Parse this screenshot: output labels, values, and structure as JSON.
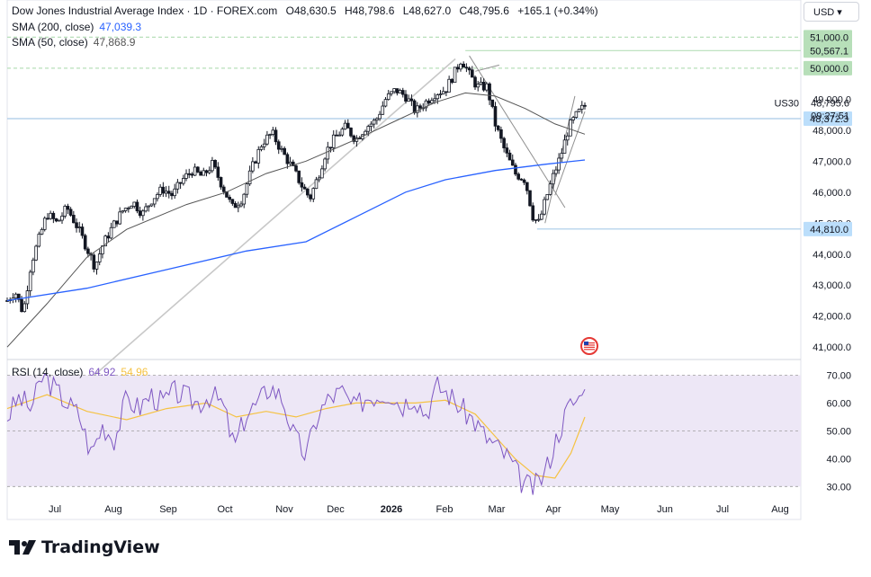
{
  "header": {
    "symbol_line": "Dow Jones Industrial Average Index · 1D · FOREX.com",
    "ohlc": {
      "o_label": "O",
      "o_value": "48,630.5",
      "h_label": "H",
      "h_value": "48,798.6",
      "l_label": "L",
      "l_value": "48,627.0",
      "c_label": "C",
      "c_value": "48,795.6",
      "change": "+165.1 (+0.34%)"
    },
    "sma200_label": "SMA (200, close)",
    "sma200_value": "47,039.3",
    "sma50_label": "SMA (50, close)",
    "sma50_value": "47,868.9",
    "currency": "USD"
  },
  "brand": {
    "name": "TradingView"
  },
  "colors": {
    "up": "#131722",
    "sma200": "#2962ff",
    "sma50": "#555555",
    "trend": "#c8c8c8",
    "green_level": "#b7dfb9",
    "blue_level": "#a9cbe8",
    "rsi": "#7e57c2",
    "rsi_ma": "#f5c242",
    "rsi_band": "#ede7f6"
  },
  "chart_data": [
    {
      "type": "candlestick",
      "symbol": "US30",
      "x_ticks": [
        "Jul",
        "Aug",
        "Sep",
        "Oct",
        "Nov",
        "Dec",
        "2026",
        "Feb",
        "Mar",
        "Apr",
        "May",
        "Jun",
        "Jul",
        "Aug"
      ],
      "y_ticks": [
        "51,000.0",
        "50,000.0",
        "49,000.0",
        "48,000.0",
        "47,000.0",
        "46,000.0",
        "45,000.0",
        "44,000.0",
        "43,000.0",
        "42,000.0",
        "41,000.0"
      ],
      "y_tick_values": [
        51000,
        50000,
        49000,
        48000,
        47000,
        46000,
        45000,
        44000,
        43000,
        42000,
        41000
      ],
      "ylim": [
        40600,
        52200
      ],
      "price_labels": [
        {
          "text": "51,000.0",
          "value": 51000,
          "style": "green"
        },
        {
          "text": "50,567.1",
          "value": 50567.1,
          "style": "green"
        },
        {
          "text": "50,000.0",
          "value": 50000,
          "style": "green"
        },
        {
          "text": "48,372.3",
          "value": 48372.3,
          "style": "blue"
        },
        {
          "text": "44,810.0",
          "value": 44810,
          "style": "blue"
        }
      ],
      "last_price": "48,795.6",
      "countdown": "09:27:51",
      "close_path": [
        [
          0,
          42500
        ],
        [
          4,
          42800
        ],
        [
          8,
          42100
        ],
        [
          12,
          43700
        ],
        [
          16,
          44500
        ],
        [
          20,
          45300
        ],
        [
          25,
          45000
        ],
        [
          30,
          45500
        ],
        [
          35,
          44900
        ],
        [
          40,
          44200
        ],
        [
          44,
          43600
        ],
        [
          48,
          44300
        ],
        [
          53,
          44900
        ],
        [
          58,
          45400
        ],
        [
          63,
          45700
        ],
        [
          68,
          45300
        ],
        [
          73,
          45800
        ],
        [
          78,
          46100
        ],
        [
          83,
          45900
        ],
        [
          88,
          46400
        ],
        [
          93,
          46700
        ],
        [
          98,
          46500
        ],
        [
          103,
          46900
        ],
        [
          108,
          46200
        ],
        [
          113,
          45500
        ],
        [
          118,
          45800
        ],
        [
          123,
          46800
        ],
        [
          128,
          47600
        ],
        [
          133,
          47900
        ],
        [
          138,
          47300
        ],
        [
          143,
          46800
        ],
        [
          148,
          46200
        ],
        [
          152,
          45800
        ],
        [
          156,
          46500
        ],
        [
          160,
          47300
        ],
        [
          165,
          47800
        ],
        [
          170,
          48100
        ],
        [
          175,
          47700
        ],
        [
          180,
          48100
        ],
        [
          185,
          48300
        ],
        [
          190,
          49000
        ],
        [
          195,
          49300
        ],
        [
          200,
          49100
        ],
        [
          205,
          48600
        ],
        [
          210,
          48900
        ],
        [
          215,
          49200
        ],
        [
          220,
          49300
        ],
        [
          225,
          49900
        ],
        [
          228,
          50300
        ],
        [
          232,
          49800
        ],
        [
          236,
          49400
        ],
        [
          241,
          49400
        ],
        [
          245,
          48200
        ],
        [
          250,
          47300
        ],
        [
          255,
          46600
        ],
        [
          260,
          46400
        ],
        [
          264,
          45200
        ],
        [
          267,
          45000
        ],
        [
          270,
          45700
        ],
        [
          274,
          46500
        ],
        [
          278,
          47200
        ],
        [
          282,
          48100
        ],
        [
          286,
          48500
        ],
        [
          290,
          48795.6
        ]
      ],
      "sma200": [
        [
          0,
          42500
        ],
        [
          40,
          42900
        ],
        [
          80,
          43500
        ],
        [
          120,
          44100
        ],
        [
          150,
          44400
        ],
        [
          175,
          45200
        ],
        [
          200,
          46000
        ],
        [
          220,
          46400
        ],
        [
          245,
          46700
        ],
        [
          270,
          46900
        ],
        [
          290,
          47039.3
        ]
      ],
      "sma50": [
        [
          0,
          41000
        ],
        [
          20,
          42400
        ],
        [
          40,
          43900
        ],
        [
          60,
          44800
        ],
        [
          90,
          45600
        ],
        [
          110,
          46000
        ],
        [
          130,
          46600
        ],
        [
          150,
          47000
        ],
        [
          175,
          47700
        ],
        [
          195,
          48300
        ],
        [
          215,
          48900
        ],
        [
          230,
          49200
        ],
        [
          245,
          49100
        ],
        [
          260,
          48700
        ],
        [
          275,
          48200
        ],
        [
          290,
          47868.9
        ]
      ],
      "trendlines": [
        [
          [
            35,
            39600
          ],
          [
            225,
            50300
          ]
        ],
        [
          [
            232,
            50400
          ],
          [
            280,
            45500
          ]
        ],
        [
          [
            270,
            45000
          ],
          [
            285,
            49100
          ]
        ],
        [
          [
            275,
            45900
          ],
          [
            290,
            48600
          ]
        ],
        [
          [
            235,
            49900
          ],
          [
            247,
            50100
          ]
        ]
      ],
      "levels": [
        {
          "value": 51000,
          "color": "#b7dfb9",
          "dashed": true,
          "from": 0
        },
        {
          "value": 50567.1,
          "color": "#b7dfb9",
          "dashed": false,
          "from": 230
        },
        {
          "value": 50000,
          "color": "#b7dfb9",
          "dashed": true,
          "from": 0
        },
        {
          "value": 48372.3,
          "color": "#a9cbe8",
          "dashed": false,
          "from": 0
        },
        {
          "value": 44810,
          "color": "#a9cbe8",
          "dashed": false,
          "from": 266
        }
      ]
    },
    {
      "type": "line",
      "label": "RSI (14, close)",
      "rsi_value": "64.92",
      "ma_value": "54.96",
      "y_ticks": [
        "70.00",
        "60.00",
        "50.00",
        "40.00",
        "30.00"
      ],
      "y_tick_values": [
        70,
        60,
        50,
        40,
        30
      ],
      "ylim": [
        23,
        75
      ],
      "band": [
        30,
        70
      ],
      "rsi": [
        [
          0,
          55
        ],
        [
          6,
          62
        ],
        [
          12,
          58
        ],
        [
          18,
          70
        ],
        [
          24,
          65
        ],
        [
          30,
          60
        ],
        [
          36,
          56
        ],
        [
          42,
          42
        ],
        [
          48,
          52
        ],
        [
          54,
          47
        ],
        [
          60,
          62
        ],
        [
          66,
          58
        ],
        [
          72,
          63
        ],
        [
          78,
          60
        ],
        [
          84,
          64
        ],
        [
          90,
          62
        ],
        [
          96,
          60
        ],
        [
          102,
          63
        ],
        [
          108,
          60
        ],
        [
          114,
          44
        ],
        [
          120,
          56
        ],
        [
          126,
          60
        ],
        [
          132,
          66
        ],
        [
          138,
          62
        ],
        [
          144,
          48
        ],
        [
          150,
          41
        ],
        [
          156,
          56
        ],
        [
          162,
          62
        ],
        [
          168,
          64
        ],
        [
          174,
          58
        ],
        [
          180,
          62
        ],
        [
          186,
          63
        ],
        [
          192,
          64
        ],
        [
          198,
          59
        ],
        [
          204,
          63
        ],
        [
          210,
          56
        ],
        [
          216,
          66
        ],
        [
          222,
          63
        ],
        [
          228,
          58
        ],
        [
          234,
          54
        ],
        [
          240,
          48
        ],
        [
          246,
          44
        ],
        [
          252,
          40
        ],
        [
          258,
          32
        ],
        [
          264,
          29
        ],
        [
          270,
          35
        ],
        [
          276,
          48
        ],
        [
          282,
          59
        ],
        [
          288,
          62
        ],
        [
          290,
          64.92
        ]
      ],
      "rsi_ma": [
        [
          0,
          58
        ],
        [
          20,
          63
        ],
        [
          40,
          57
        ],
        [
          60,
          54
        ],
        [
          80,
          58
        ],
        [
          100,
          60
        ],
        [
          115,
          55
        ],
        [
          130,
          57
        ],
        [
          145,
          55
        ],
        [
          160,
          58
        ],
        [
          175,
          60
        ],
        [
          190,
          60
        ],
        [
          205,
          60
        ],
        [
          220,
          61
        ],
        [
          235,
          56
        ],
        [
          245,
          48
        ],
        [
          255,
          40
        ],
        [
          265,
          34
        ],
        [
          275,
          33
        ],
        [
          283,
          42
        ],
        [
          290,
          54.96
        ]
      ]
    }
  ]
}
